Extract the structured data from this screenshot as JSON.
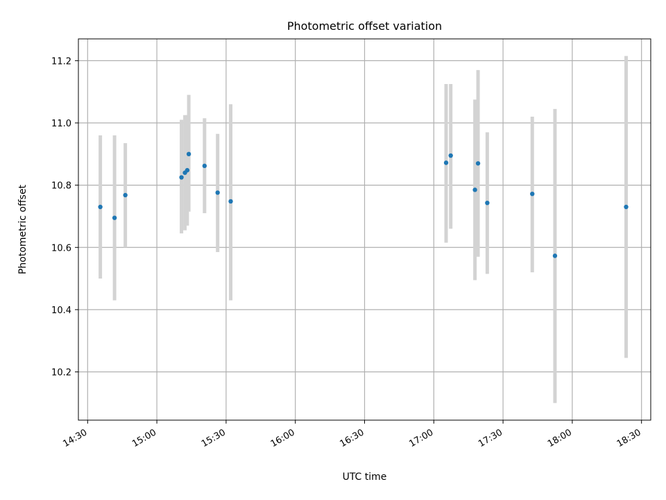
{
  "chart_data": {
    "type": "scatter",
    "title": "Photometric offset variation",
    "xlabel": "UTC time",
    "ylabel": "Photometric offset",
    "x_unit": "time",
    "xlim": [
      "14:26",
      "18:34"
    ],
    "ylim": [
      10.045,
      11.27
    ],
    "xticks": [
      "14:30",
      "15:00",
      "15:30",
      "16:00",
      "16:30",
      "17:00",
      "17:30",
      "18:00",
      "18:30"
    ],
    "yticks": [
      10.2,
      10.4,
      10.6,
      10.8,
      11.0,
      11.2
    ],
    "grid": true,
    "colors": {
      "point": "#1f77b4",
      "errorbar": "#d3d3d3",
      "grid": "#b0b0b0",
      "axes": "#000000"
    },
    "points": [
      {
        "x": "14:35:30",
        "y": 10.73,
        "err_low": 10.5,
        "err_high": 10.96
      },
      {
        "x": "14:41:40",
        "y": 10.695,
        "err_low": 10.43,
        "err_high": 10.96
      },
      {
        "x": "14:46:20",
        "y": 10.768,
        "err_low": 10.6,
        "err_high": 10.935
      },
      {
        "x": "15:10:40",
        "y": 10.825,
        "err_low": 10.645,
        "err_high": 11.01
      },
      {
        "x": "15:12:10",
        "y": 10.84,
        "err_low": 10.655,
        "err_high": 11.025
      },
      {
        "x": "15:13:10",
        "y": 10.848,
        "err_low": 10.67,
        "err_high": 11.025
      },
      {
        "x": "15:13:50",
        "y": 10.9,
        "err_low": 10.715,
        "err_high": 11.09
      },
      {
        "x": "15:20:40",
        "y": 10.862,
        "err_low": 10.71,
        "err_high": 11.015
      },
      {
        "x": "15:26:20",
        "y": 10.776,
        "err_low": 10.585,
        "err_high": 10.965
      },
      {
        "x": "15:32:00",
        "y": 10.748,
        "err_low": 10.43,
        "err_high": 11.06
      },
      {
        "x": "17:05:20",
        "y": 10.872,
        "err_low": 10.615,
        "err_high": 11.125
      },
      {
        "x": "17:07:20",
        "y": 10.895,
        "err_low": 10.66,
        "err_high": 11.125
      },
      {
        "x": "17:17:50",
        "y": 10.785,
        "err_low": 10.495,
        "err_high": 11.075
      },
      {
        "x": "17:19:10",
        "y": 10.87,
        "err_low": 10.57,
        "err_high": 11.17
      },
      {
        "x": "17:23:10",
        "y": 10.743,
        "err_low": 10.515,
        "err_high": 10.97
      },
      {
        "x": "17:42:40",
        "y": 10.772,
        "err_low": 10.52,
        "err_high": 11.02
      },
      {
        "x": "17:52:30",
        "y": 10.573,
        "err_low": 10.1,
        "err_high": 11.045
      },
      {
        "x": "18:23:20",
        "y": 10.73,
        "err_low": 10.245,
        "err_high": 11.215
      }
    ]
  }
}
